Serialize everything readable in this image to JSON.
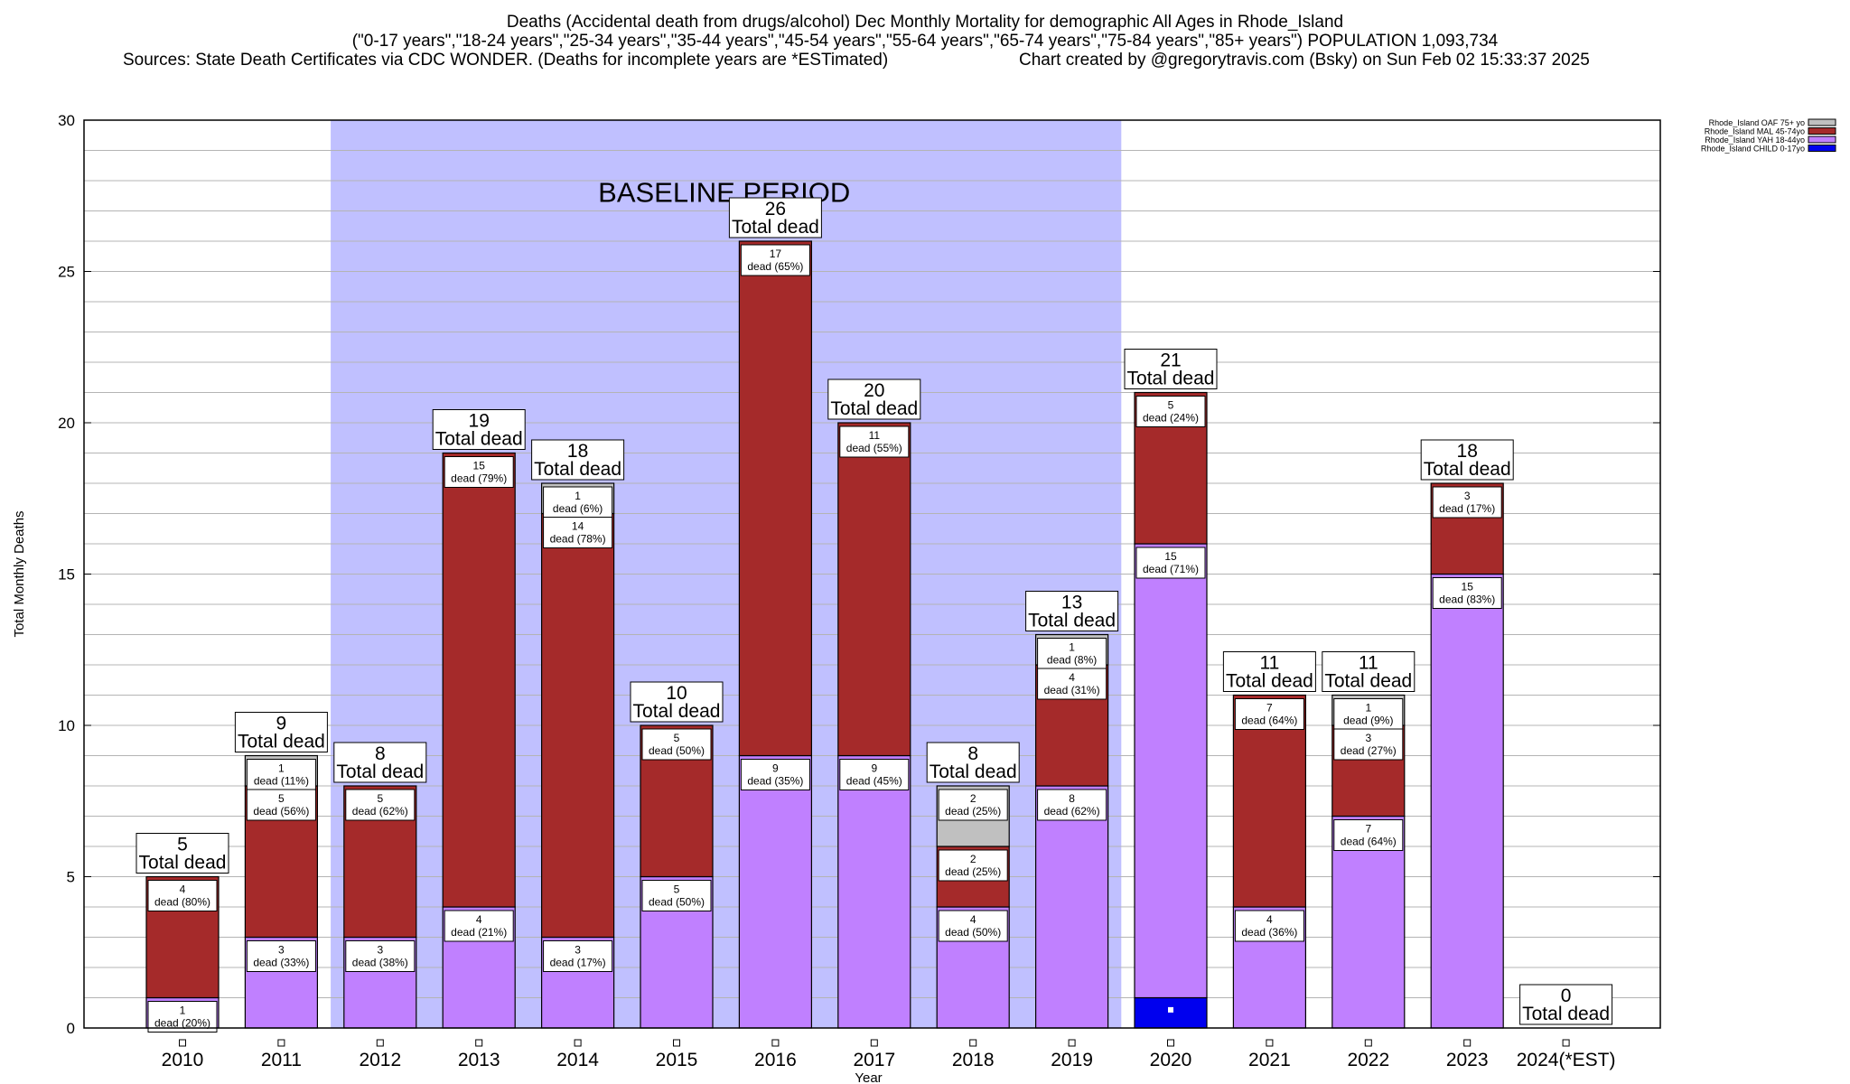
{
  "header": {
    "line1": "Deaths (Accidental death from drugs/alcohol) Dec Monthly Mortality for demographic All Ages in Rhode_Island",
    "line2": "(\"0-17 years\",\"18-24 years\",\"25-34 years\",\"35-44 years\",\"45-54 years\",\"55-64 years\",\"65-74 years\",\"75-84 years\",\"85+ years\") POPULATION 1,093,734",
    "line3_left": "Sources: State Death Certificates via CDC WONDER. (Deaths for incomplete years are *ESTimated)",
    "line3_right": "Chart created by @gregorytravis.com (Bsky) on Sun Feb 02 15:33:37 2025"
  },
  "colors": {
    "child": "#0000ee",
    "yah": "#c080ff",
    "mal": "#a52a2a",
    "oaf": "#c0c0c0",
    "baseline": "#c0c0ff"
  },
  "chart_data": {
    "type": "bar",
    "stacked": true,
    "title": "Deaths (Accidental death from drugs/alcohol) Dec Monthly Mortality for demographic All Ages in Rhode_Island",
    "xlabel": "Year",
    "ylabel": "Total Monthly Deaths",
    "ylim": [
      0,
      30
    ],
    "yticks": [
      0,
      5,
      10,
      15,
      20,
      25,
      30
    ],
    "grid": true,
    "legend_position": "top-right",
    "categories": [
      "2010",
      "2011",
      "2012",
      "2013",
      "2014",
      "2015",
      "2016",
      "2017",
      "2018",
      "2019",
      "2020",
      "2021",
      "2022",
      "2023",
      "2024(*EST)"
    ],
    "series": [
      {
        "name": "Rhode_Island CHILD 0-17yo",
        "key": "child",
        "values": [
          0,
          0,
          0,
          0,
          0,
          0,
          0,
          0,
          0,
          0,
          1,
          0,
          0,
          0,
          0
        ]
      },
      {
        "name": "Rhode_Island YAH 18-44yo",
        "key": "yah",
        "values": [
          1,
          3,
          3,
          4,
          3,
          5,
          9,
          9,
          4,
          8,
          15,
          4,
          7,
          15,
          0
        ]
      },
      {
        "name": "Rhode_Island MAL 45-74yo",
        "key": "mal",
        "values": [
          4,
          5,
          5,
          15,
          14,
          5,
          17,
          11,
          2,
          4,
          5,
          7,
          3,
          3,
          0
        ]
      },
      {
        "name": "Rhode_Island OAF 75+ yo",
        "key": "oaf",
        "values": [
          0,
          1,
          0,
          0,
          1,
          0,
          0,
          0,
          2,
          1,
          0,
          0,
          1,
          0,
          0
        ]
      }
    ],
    "legend_order": [
      "oaf",
      "mal",
      "yah",
      "child"
    ],
    "totals": [
      5,
      9,
      8,
      19,
      18,
      10,
      26,
      20,
      8,
      13,
      21,
      11,
      11,
      18,
      0
    ],
    "total_label_suffix": "Total dead",
    "segment_labels": [
      [
        {
          "key": "mal",
          "count": "4",
          "pct": "dead (80%)"
        },
        {
          "key": "yah",
          "count": "1",
          "pct": "dead (20%)"
        }
      ],
      [
        {
          "key": "oaf",
          "count": "1",
          "pct": "dead (11%)"
        },
        {
          "key": "mal",
          "count": "5",
          "pct": "dead (56%)"
        },
        {
          "key": "yah",
          "count": "3",
          "pct": "dead (33%)"
        }
      ],
      [
        {
          "key": "mal",
          "count": "5",
          "pct": "dead (62%)"
        },
        {
          "key": "yah",
          "count": "3",
          "pct": "dead (38%)"
        }
      ],
      [
        {
          "key": "mal",
          "count": "15",
          "pct": "dead (79%)"
        },
        {
          "key": "yah",
          "count": "4",
          "pct": "dead (21%)"
        }
      ],
      [
        {
          "key": "oaf",
          "count": "1",
          "pct": "dead (6%)"
        },
        {
          "key": "mal",
          "count": "14",
          "pct": "dead (78%)"
        },
        {
          "key": "yah",
          "count": "3",
          "pct": "dead (17%)"
        }
      ],
      [
        {
          "key": "mal",
          "count": "5",
          "pct": "dead (50%)"
        },
        {
          "key": "yah",
          "count": "5",
          "pct": "dead (50%)"
        }
      ],
      [
        {
          "key": "mal",
          "count": "17",
          "pct": "dead (65%)"
        },
        {
          "key": "yah",
          "count": "9",
          "pct": "dead (35%)"
        }
      ],
      [
        {
          "key": "mal",
          "count": "11",
          "pct": "dead (55%)"
        },
        {
          "key": "yah",
          "count": "9",
          "pct": "dead (45%)"
        }
      ],
      [
        {
          "key": "oaf",
          "count": "2",
          "pct": "dead (25%)"
        },
        {
          "key": "mal",
          "count": "2",
          "pct": "dead (25%)"
        },
        {
          "key": "yah",
          "count": "4",
          "pct": "dead (50%)"
        }
      ],
      [
        {
          "key": "oaf",
          "count": "1",
          "pct": "dead (8%)"
        },
        {
          "key": "mal",
          "count": "4",
          "pct": "dead (31%)"
        },
        {
          "key": "yah",
          "count": "8",
          "pct": "dead (62%)"
        }
      ],
      [
        {
          "key": "mal",
          "count": "5",
          "pct": "dead (24%)"
        },
        {
          "key": "yah",
          "count": "15",
          "pct": "dead (71%)"
        }
      ],
      [
        {
          "key": "mal",
          "count": "7",
          "pct": "dead (64%)"
        },
        {
          "key": "yah",
          "count": "4",
          "pct": "dead (36%)"
        }
      ],
      [
        {
          "key": "oaf",
          "count": "1",
          "pct": "dead (9%)"
        },
        {
          "key": "mal",
          "count": "3",
          "pct": "dead (27%)"
        },
        {
          "key": "yah",
          "count": "7",
          "pct": "dead (64%)"
        }
      ],
      [
        {
          "key": "mal",
          "count": "3",
          "pct": "dead (17%)"
        },
        {
          "key": "yah",
          "count": "15",
          "pct": "dead (83%)"
        }
      ],
      []
    ],
    "baseline": {
      "label": "BASELINE PERIOD",
      "from": "2012",
      "to": "2019"
    }
  }
}
